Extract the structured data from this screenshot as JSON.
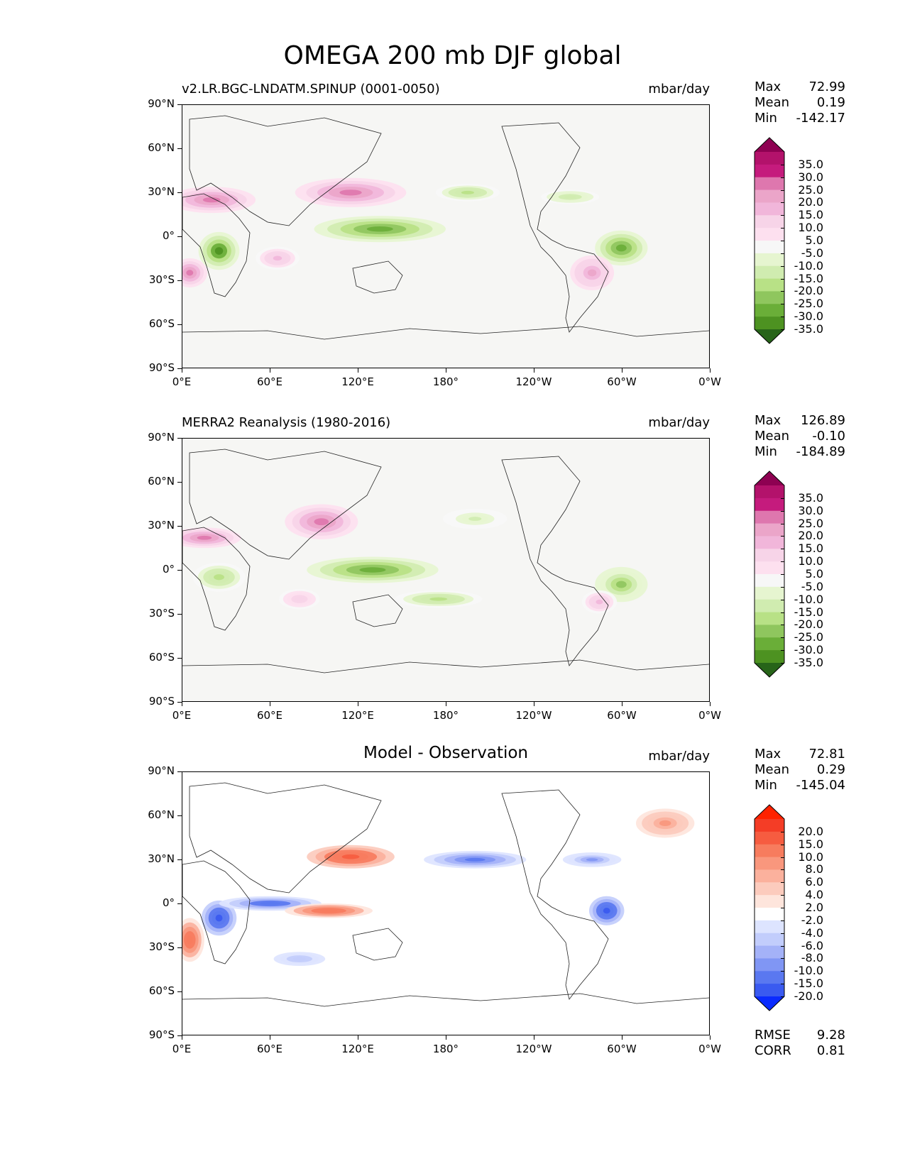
{
  "figure": {
    "title": "OMEGA 200 mb DJF global"
  },
  "axes": {
    "y_ticks": [
      "90°N",
      "60°N",
      "30°N",
      "0°",
      "30°S",
      "60°S",
      "90°S"
    ],
    "x_ticks": [
      "0°E",
      "60°E",
      "120°E",
      "180°",
      "120°W",
      "60°W",
      "0°W"
    ]
  },
  "panels": [
    {
      "title": "v2.LR.BGC-LNDATM.SPINUP (0001-0050)",
      "units": "mbar/day",
      "stats": {
        "max_label": "Max",
        "max": "72.99",
        "mean_label": "Mean",
        "mean": "0.19",
        "min_label": "Min",
        "min": "-142.17"
      }
    },
    {
      "title": "MERRA2 Reanalysis (1980-2016)",
      "units": "mbar/day",
      "stats": {
        "max_label": "Max",
        "max": "126.89",
        "mean_label": "Mean",
        "mean": "-0.10",
        "min_label": "Min",
        "min": "-184.89"
      }
    },
    {
      "title": "Model - Observation",
      "units": "mbar/day",
      "stats": {
        "max_label": "Max",
        "max": "72.81",
        "mean_label": "Mean",
        "mean": "0.29",
        "min_label": "Min",
        "min": "-145.04"
      },
      "metrics": {
        "rmse_label": "RMSE",
        "rmse": "9.28",
        "corr_label": "CORR",
        "corr": "0.81"
      }
    }
  ],
  "colorbars": {
    "field": {
      "labels": [
        "35.0",
        "30.0",
        "25.0",
        "20.0",
        "15.0",
        "10.0",
        "5.0",
        "-5.0",
        "-10.0",
        "-15.0",
        "-20.0",
        "-25.0",
        "-30.0",
        "-35.0"
      ],
      "colors": [
        "#8e0152",
        "#b3126b",
        "#c51b7d",
        "#de77ae",
        "#eba5c9",
        "#f1b6da",
        "#f7d4e8",
        "#fde0ef",
        "#f7f7f7",
        "#e6f5d0",
        "#d0ecb0",
        "#b8e186",
        "#8fc65e",
        "#6aae38",
        "#4d9221",
        "#276419"
      ]
    },
    "diff": {
      "labels": [
        "20.0",
        "15.0",
        "10.0",
        "8.0",
        "6.0",
        "4.0",
        "2.0",
        "-2.0",
        "-4.0",
        "-6.0",
        "-8.0",
        "-10.0",
        "-15.0",
        "-20.0"
      ],
      "colors": [
        "#ff2200",
        "#f43d26",
        "#f65c40",
        "#f77c5e",
        "#f9977d",
        "#fbb19d",
        "#fccbbd",
        "#fee5dc",
        "#ffffff",
        "#dde4ff",
        "#c2cdfc",
        "#a4b2f8",
        "#8096f4",
        "#5a78f0",
        "#3a5af0",
        "#0a2bff"
      ]
    }
  },
  "chart_data": [
    {
      "type": "heatmap",
      "title": "v2.LR.BGC-LNDATM.SPINUP (0001-0050)",
      "units": "mbar/day",
      "xlim": [
        0,
        360
      ],
      "ylim": [
        -90,
        90
      ],
      "levels": [
        -35,
        -30,
        -25,
        -20,
        -15,
        -10,
        -5,
        5,
        10,
        15,
        20,
        25,
        30,
        35
      ],
      "stats": {
        "max": 72.99,
        "mean": 0.19,
        "min": -142.17
      },
      "features": [
        {
          "lon": 115,
          "lat": 30,
          "rx": 38,
          "ry": 10,
          "value": 32
        },
        {
          "lon": 20,
          "lat": 25,
          "rx": 30,
          "ry": 9,
          "value": 28
        },
        {
          "lon": 135,
          "lat": 5,
          "rx": 45,
          "ry": 9,
          "value": -32
        },
        {
          "lon": 25,
          "lat": -10,
          "rx": 14,
          "ry": 13,
          "value": -35
        },
        {
          "lon": 300,
          "lat": -8,
          "rx": 18,
          "ry": 12,
          "value": -30
        },
        {
          "lon": 195,
          "lat": 30,
          "rx": 22,
          "ry": 6,
          "value": -18
        },
        {
          "lon": 265,
          "lat": 27,
          "rx": 20,
          "ry": 5,
          "value": -15
        },
        {
          "lon": 65,
          "lat": -15,
          "rx": 15,
          "ry": 8,
          "value": 20
        },
        {
          "lon": 280,
          "lat": -25,
          "rx": 15,
          "ry": 12,
          "value": 25
        },
        {
          "lon": 5,
          "lat": -25,
          "rx": 12,
          "ry": 10,
          "value": 30
        }
      ]
    },
    {
      "type": "heatmap",
      "title": "MERRA2 Reanalysis (1980-2016)",
      "units": "mbar/day",
      "xlim": [
        0,
        360
      ],
      "ylim": [
        -90,
        90
      ],
      "levels": [
        -35,
        -30,
        -25,
        -20,
        -15,
        -10,
        -5,
        5,
        10,
        15,
        20,
        25,
        30,
        35
      ],
      "stats": {
        "max": 126.89,
        "mean": -0.1,
        "min": -184.89
      },
      "features": [
        {
          "lon": 95,
          "lat": 33,
          "rx": 25,
          "ry": 12,
          "value": 30
        },
        {
          "lon": 15,
          "lat": 22,
          "rx": 25,
          "ry": 7,
          "value": 28
        },
        {
          "lon": 130,
          "lat": 0,
          "rx": 45,
          "ry": 9,
          "value": -30
        },
        {
          "lon": 25,
          "lat": -5,
          "rx": 18,
          "ry": 10,
          "value": -20
        },
        {
          "lon": 300,
          "lat": -10,
          "rx": 18,
          "ry": 12,
          "value": -22
        },
        {
          "lon": 200,
          "lat": 35,
          "rx": 22,
          "ry": 7,
          "value": -12
        },
        {
          "lon": 175,
          "lat": -20,
          "rx": 30,
          "ry": 6,
          "value": -20
        },
        {
          "lon": 285,
          "lat": -22,
          "rx": 12,
          "ry": 8,
          "value": 20
        },
        {
          "lon": 80,
          "lat": -20,
          "rx": 14,
          "ry": 7,
          "value": 15
        }
      ]
    },
    {
      "type": "heatmap",
      "title": "Model - Observation",
      "units": "mbar/day",
      "xlim": [
        0,
        360
      ],
      "ylim": [
        -90,
        90
      ],
      "levels": [
        -20,
        -15,
        -10,
        -8,
        -6,
        -4,
        -2,
        2,
        4,
        6,
        8,
        10,
        15,
        20
      ],
      "stats": {
        "max": 72.81,
        "mean": 0.29,
        "min": -145.04
      },
      "metrics": {
        "rmse": 9.28,
        "corr": 0.81
      },
      "features": [
        {
          "lon": 115,
          "lat": 32,
          "rx": 30,
          "ry": 8,
          "value": 18
        },
        {
          "lon": 25,
          "lat": -10,
          "rx": 12,
          "ry": 12,
          "value": -20
        },
        {
          "lon": 60,
          "lat": 0,
          "rx": 35,
          "ry": 5,
          "value": -14
        },
        {
          "lon": 200,
          "lat": 30,
          "rx": 35,
          "ry": 6,
          "value": -12
        },
        {
          "lon": 280,
          "lat": 30,
          "rx": 20,
          "ry": 5,
          "value": -10
        },
        {
          "lon": 100,
          "lat": -5,
          "rx": 30,
          "ry": 5,
          "value": 16
        },
        {
          "lon": 290,
          "lat": -5,
          "rx": 12,
          "ry": 10,
          "value": -20
        },
        {
          "lon": 5,
          "lat": -25,
          "rx": 10,
          "ry": 15,
          "value": 15
        },
        {
          "lon": 330,
          "lat": 55,
          "rx": 20,
          "ry": 10,
          "value": 10
        },
        {
          "lon": 80,
          "lat": -38,
          "rx": 22,
          "ry": 6,
          "value": -6
        }
      ]
    }
  ]
}
